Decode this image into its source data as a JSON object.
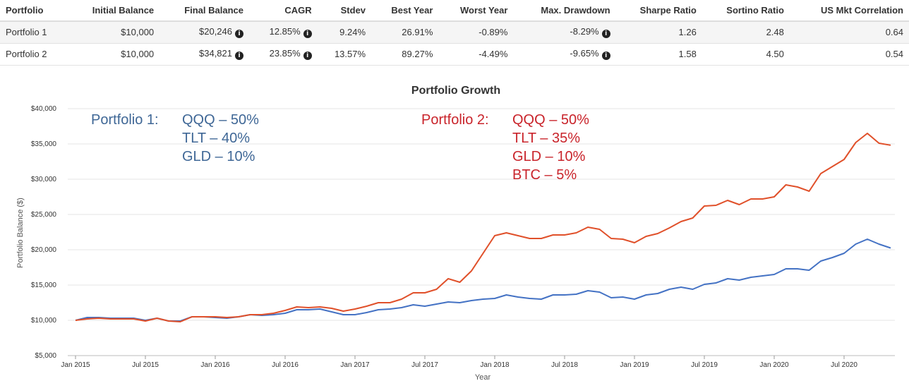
{
  "table": {
    "headers": [
      "Portfolio",
      "Initial Balance",
      "Final Balance",
      "CAGR",
      "Stdev",
      "Best Year",
      "Worst Year",
      "Max. Drawdown",
      "Sharpe Ratio",
      "Sortino Ratio",
      "US Mkt Correlation"
    ],
    "rows": [
      {
        "portfolio": "Portfolio 1",
        "initial": "$10,000",
        "final": "$20,246",
        "cagr": "12.85%",
        "stdev": "9.24%",
        "best": "26.91%",
        "worst": "-0.89%",
        "drawdown": "-8.29%",
        "sharpe": "1.26",
        "sortino": "2.48",
        "corr": "0.64"
      },
      {
        "portfolio": "Portfolio 2",
        "initial": "$10,000",
        "final": "$34,821",
        "cagr": "23.85%",
        "stdev": "13.57%",
        "best": "89.27%",
        "worst": "-4.49%",
        "drawdown": "-9.65%",
        "sharpe": "1.58",
        "sortino": "4.50",
        "corr": "0.54"
      }
    ]
  },
  "chart_data": {
    "type": "line",
    "title": "Portfolio Growth",
    "xlabel": "Year",
    "ylabel": "Portfolio Balance ($)",
    "ylim": [
      5000,
      40000
    ],
    "yticks": [
      5000,
      10000,
      15000,
      20000,
      25000,
      30000,
      35000,
      40000
    ],
    "ytick_labels": [
      "$5,000",
      "$10,000",
      "$15,000",
      "$20,000",
      "$25,000",
      "$30,000",
      "$35,000",
      "$40,000"
    ],
    "xticks": [
      "Jan 2015",
      "Jul 2015",
      "Jan 2016",
      "Jul 2016",
      "Jan 2017",
      "Jul 2017",
      "Jan 2018",
      "Jul 2018",
      "Jan 2019",
      "Jul 2019",
      "Jan 2020",
      "Jul 2020"
    ],
    "x_start": "Jan 2015",
    "x_end": "Dec 2020",
    "grid": true,
    "series": [
      {
        "color": "#4472c4",
        "values": [
          10000,
          10400,
          10400,
          10300,
          10300,
          10300,
          10000,
          10300,
          9900,
          9900,
          10500,
          10500,
          10400,
          10300,
          10500,
          10800,
          10700,
          10800,
          11000,
          11500,
          11500,
          11600,
          11200,
          10800,
          10800,
          11100,
          11500,
          11600,
          11800,
          12200,
          12000,
          12300,
          12600,
          12500,
          12800,
          13000,
          13100,
          13600,
          13300,
          13100,
          13000,
          13600,
          13600,
          13700,
          14200,
          14000,
          13200,
          13300,
          13000,
          13600,
          13800,
          14400,
          14700,
          14400,
          15100,
          15300,
          15900,
          15700,
          16100,
          16300,
          16500,
          17300,
          17300,
          17100,
          18400,
          18900,
          19500,
          20800,
          21500,
          20800,
          20246
        ]
      },
      {
        "color": "#e0502a",
        "values": [
          10000,
          10200,
          10300,
          10200,
          10200,
          10200,
          9900,
          10300,
          9900,
          9800,
          10500,
          10500,
          10500,
          10400,
          10500,
          10800,
          10800,
          11000,
          11400,
          11900,
          11800,
          11900,
          11700,
          11300,
          11600,
          12000,
          12500,
          12500,
          13000,
          13900,
          13900,
          14400,
          15900,
          15400,
          17000,
          19500,
          22000,
          22400,
          22000,
          21600,
          21600,
          22100,
          22100,
          22400,
          23200,
          22900,
          21600,
          21500,
          21000,
          21900,
          22300,
          23100,
          24000,
          24500,
          26200,
          26300,
          27000,
          26400,
          27200,
          27200,
          27500,
          29200,
          28900,
          28300,
          30800,
          31800,
          32800,
          35200,
          36500,
          35100,
          34821
        ]
      }
    ],
    "annotations": [
      {
        "lines": [
          "Portfolio 1:",
          "QQQ – 50%",
          "TLT – 40%",
          "GLD – 10%"
        ],
        "color": "#3f6796"
      },
      {
        "lines": [
          "Portfolio 2:",
          "QQQ – 50%",
          "TLT – 35%",
          "GLD – 10%",
          "BTC – 5%"
        ],
        "color": "#c9242b"
      }
    ]
  }
}
